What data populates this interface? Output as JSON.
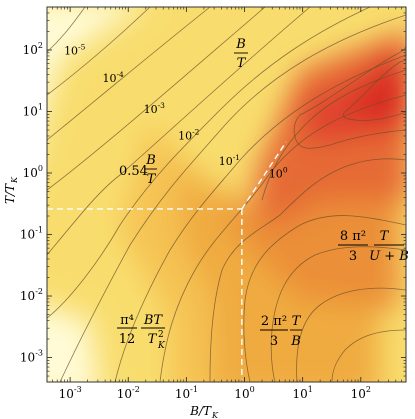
{
  "chart_data": {
    "type": "heatmap",
    "title": "",
    "xlabel": "B/T_K",
    "ylabel": "T/T_K",
    "x_scale": "log",
    "y_scale": "log",
    "xlim": [
      0.0004,
      600
    ],
    "ylim": [
      0.0004,
      500
    ],
    "x_ticks": [
      {
        "value": 0.001,
        "label": "10^-3"
      },
      {
        "value": 0.01,
        "label": "10^-2"
      },
      {
        "value": 0.1,
        "label": "10^-1"
      },
      {
        "value": 1,
        "label": "10^0"
      },
      {
        "value": 10,
        "label": "10^1"
      },
      {
        "value": 100,
        "label": "10^2"
      }
    ],
    "y_ticks": [
      {
        "value": 0.001,
        "label": "10^-3"
      },
      {
        "value": 0.01,
        "label": "10^-2"
      },
      {
        "value": 0.1,
        "label": "10^-1"
      },
      {
        "value": 1,
        "label": "10^0"
      },
      {
        "value": 10,
        "label": "10^1"
      },
      {
        "value": 100,
        "label": "10^2"
      }
    ],
    "color_scale": [
      "#fffadb",
      "#fbe98a",
      "#f5c54e",
      "#eea13c",
      "#e8743a",
      "#e2402f",
      "#dc2d26"
    ],
    "contour_labels": [
      {
        "label": "10^-5",
        "x": 0.0012,
        "y": 85
      },
      {
        "label": "10^-4",
        "x": 0.0055,
        "y": 30
      },
      {
        "label": "10^-3",
        "x": 0.028,
        "y": 9.5
      },
      {
        "label": "10^-2",
        "x": 0.11,
        "y": 3.5
      },
      {
        "label": "10^-1",
        "x": 0.55,
        "y": 1.35
      },
      {
        "label": "10^0",
        "x": 3.8,
        "y": 0.85
      }
    ],
    "annotations": [
      {
        "text": "B/T",
        "x": 0.8,
        "y": 180
      },
      {
        "text": "0.54 B/T",
        "x": 0.025,
        "y": 0.9
      },
      {
        "text": "(8π²/3) T/(U+B)",
        "x": 90,
        "y": 0.04
      },
      {
        "text": "(π⁴/12) BT/T_K²",
        "x": 0.01,
        "y": 0.006
      },
      {
        "text": "(2π²/3) T/B",
        "x": 6,
        "y": 0.006
      }
    ],
    "boundary_lines": [
      {
        "style": "dashed",
        "from": [
          0.0004,
          0.26
        ],
        "to": [
          0.9,
          0.26
        ]
      },
      {
        "style": "dashed",
        "from": [
          0.9,
          0.26
        ],
        "to": [
          0.9,
          0.0004
        ]
      },
      {
        "style": "dashed",
        "from": [
          0.9,
          0.26
        ],
        "to": [
          5.2,
          3.2
        ]
      }
    ],
    "grid": false,
    "legend": "none"
  }
}
